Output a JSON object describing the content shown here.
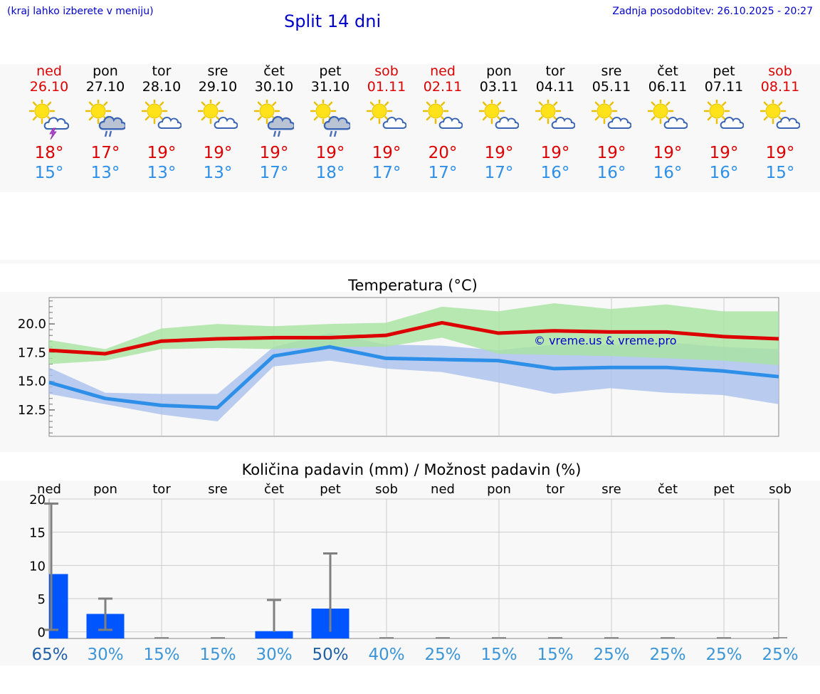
{
  "header": {
    "location_note": "(kraj lahko izberete v meniju)",
    "title": "Split 14 dni",
    "last_update": "Zadnja posodobitev: 26.10.2025 - 20:27"
  },
  "colors": {
    "link_blue": "#0000cc",
    "max_temp_red": "#dd0000",
    "min_temp_blue": "#2d8fe8",
    "max_band_green": "#a8e4a0",
    "min_band_blue": "#a9c0ee",
    "precip_bar_blue": "#0055ff",
    "error_bar_gray": "#808080"
  },
  "days": [
    {
      "name": "ned",
      "date": "26.10",
      "weekend": true,
      "icon": "sun-cloud-thunder-icon",
      "max": "18°",
      "min": "15°"
    },
    {
      "name": "pon",
      "date": "27.10",
      "weekend": false,
      "icon": "sun-cloud-rain-icon",
      "max": "17°",
      "min": "13°"
    },
    {
      "name": "tor",
      "date": "28.10",
      "weekend": false,
      "icon": "sun-cloud-icon",
      "max": "19°",
      "min": "13°"
    },
    {
      "name": "sre",
      "date": "29.10",
      "weekend": false,
      "icon": "sun-cloud-icon",
      "max": "19°",
      "min": "13°"
    },
    {
      "name": "čet",
      "date": "30.10",
      "weekend": false,
      "icon": "sun-cloud-rain-icon",
      "max": "19°",
      "min": "17°"
    },
    {
      "name": "pet",
      "date": "31.10",
      "weekend": false,
      "icon": "sun-cloud-rain-icon",
      "max": "19°",
      "min": "18°"
    },
    {
      "name": "sob",
      "date": "01.11",
      "weekend": true,
      "icon": "sun-cloud-icon",
      "max": "19°",
      "min": "17°"
    },
    {
      "name": "ned",
      "date": "02.11",
      "weekend": true,
      "icon": "sun-cloud-icon",
      "max": "20°",
      "min": "17°"
    },
    {
      "name": "pon",
      "date": "03.11",
      "weekend": false,
      "icon": "sun-cloud-icon",
      "max": "19°",
      "min": "17°"
    },
    {
      "name": "tor",
      "date": "04.11",
      "weekend": false,
      "icon": "sun-cloud-icon",
      "max": "19°",
      "min": "16°"
    },
    {
      "name": "sre",
      "date": "05.11",
      "weekend": false,
      "icon": "sun-cloud-icon",
      "max": "19°",
      "min": "16°"
    },
    {
      "name": "čet",
      "date": "06.11",
      "weekend": false,
      "icon": "sun-cloud-icon",
      "max": "19°",
      "min": "16°"
    },
    {
      "name": "pet",
      "date": "07.11",
      "weekend": false,
      "icon": "sun-cloud-icon",
      "max": "19°",
      "min": "16°"
    },
    {
      "name": "sob",
      "date": "08.11",
      "weekend": true,
      "icon": "sun-cloud-icon",
      "max": "19°",
      "min": "15°"
    }
  ],
  "chart_data": [
    {
      "type": "line",
      "title": "Temperatura (°C)",
      "x": [
        "26.10",
        "27.10",
        "28.10",
        "29.10",
        "30.10",
        "31.10",
        "01.11",
        "02.11",
        "03.11",
        "04.11",
        "05.11",
        "06.11",
        "07.11",
        "08.11"
      ],
      "ylim": [
        10.2,
        22.3
      ],
      "yticks": [
        "12.5",
        "15.0",
        "17.5",
        "20.0"
      ],
      "grid": true,
      "annotation": "© vreme.us & vreme.pro",
      "series": [
        {
          "values": [
            17.7,
            17.4,
            18.5,
            18.7,
            18.8,
            18.8,
            19.0,
            20.1,
            19.2,
            19.4,
            19.3,
            19.3,
            18.9,
            18.7
          ],
          "band_low": [
            16.5,
            16.8,
            17.8,
            17.9,
            17.8,
            18.0,
            18.0,
            18.8,
            17.4,
            17.3,
            17.2,
            17.0,
            16.8,
            16.4
          ],
          "band_high": [
            18.6,
            17.8,
            19.6,
            20.0,
            19.8,
            20.0,
            20.1,
            21.5,
            21.1,
            21.8,
            21.3,
            21.7,
            21.1,
            21.1
          ]
        },
        {
          "values": [
            14.9,
            13.5,
            12.9,
            12.7,
            17.2,
            18.0,
            17.0,
            16.9,
            16.8,
            16.1,
            16.2,
            16.2,
            15.9,
            15.4
          ],
          "band_low": [
            13.9,
            13.0,
            12.1,
            11.5,
            16.3,
            16.8,
            16.1,
            15.8,
            14.9,
            13.9,
            14.4,
            14.0,
            13.8,
            13.0
          ],
          "band_high": [
            16.2,
            14.0,
            13.9,
            13.9,
            18.0,
            19.2,
            18.2,
            18.1,
            17.7,
            18.2,
            18.2,
            18.4,
            18.0,
            17.8
          ]
        }
      ]
    },
    {
      "type": "bar",
      "title": "Količina padavin (mm) / Možnost padavin (%)",
      "categories": [
        "ned",
        "pon",
        "tor",
        "sre",
        "čet",
        "pet",
        "sob",
        "ned",
        "pon",
        "tor",
        "sre",
        "čet",
        "pet",
        "sob"
      ],
      "values": [
        8.7,
        2.7,
        0,
        0,
        0.1,
        3.5,
        0,
        0,
        0,
        0,
        0,
        0,
        0,
        0
      ],
      "error_high": [
        19.3,
        5.0,
        0,
        0,
        4.8,
        11.8,
        0,
        0,
        0,
        0,
        0,
        0,
        0,
        0
      ],
      "error_low": [
        0.3,
        0.3,
        0,
        0,
        0,
        0,
        0,
        0,
        0,
        0,
        0,
        0,
        0,
        0
      ],
      "ylim": [
        -1,
        20
      ],
      "yticks": [
        "0",
        "5",
        "10",
        "15",
        "20"
      ],
      "grid": true,
      "probability": [
        "65%",
        "30%",
        "15%",
        "15%",
        "30%",
        "50%",
        "40%",
        "25%",
        "15%",
        "15%",
        "25%",
        "25%",
        "25%",
        "25%"
      ],
      "probability_colors": [
        "#1f5fa8",
        "#3b95d6",
        "#3b95d6",
        "#3b95d6",
        "#3b95d6",
        "#1f5fa8",
        "#3b95d6",
        "#3b95d6",
        "#3b95d6",
        "#3b95d6",
        "#3b95d6",
        "#3b95d6",
        "#3b95d6",
        "#3b95d6"
      ]
    }
  ]
}
